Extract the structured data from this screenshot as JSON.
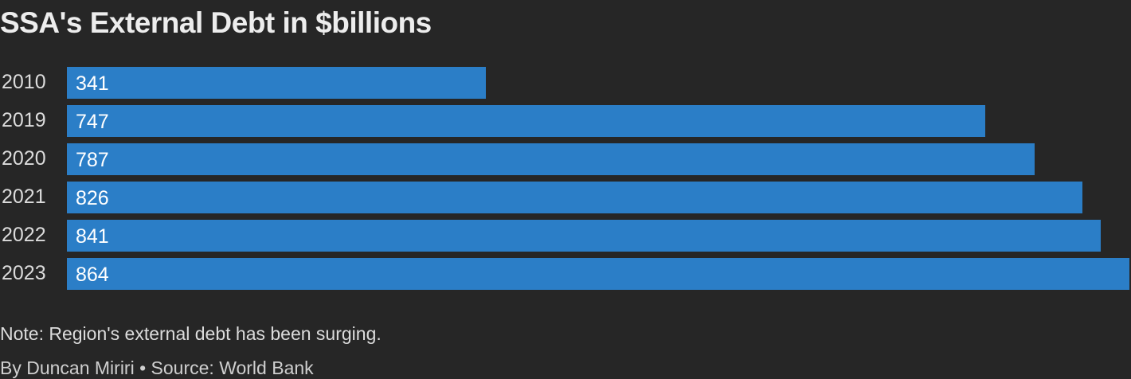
{
  "chart_data": {
    "type": "bar",
    "orientation": "horizontal",
    "title": "SSA's External Debt in $billions",
    "categories": [
      "2010",
      "2019",
      "2020",
      "2021",
      "2022",
      "2023"
    ],
    "values": [
      341,
      747,
      787,
      826,
      841,
      864
    ],
    "xlim": [
      0,
      864
    ],
    "grid": false,
    "legend": false,
    "bar_color": "#2b7ec7",
    "background_color": "#262626"
  },
  "footer": {
    "note": "Note: Region's external debt has been surging.",
    "credit": "By Duncan Miriri • Source: World Bank"
  }
}
